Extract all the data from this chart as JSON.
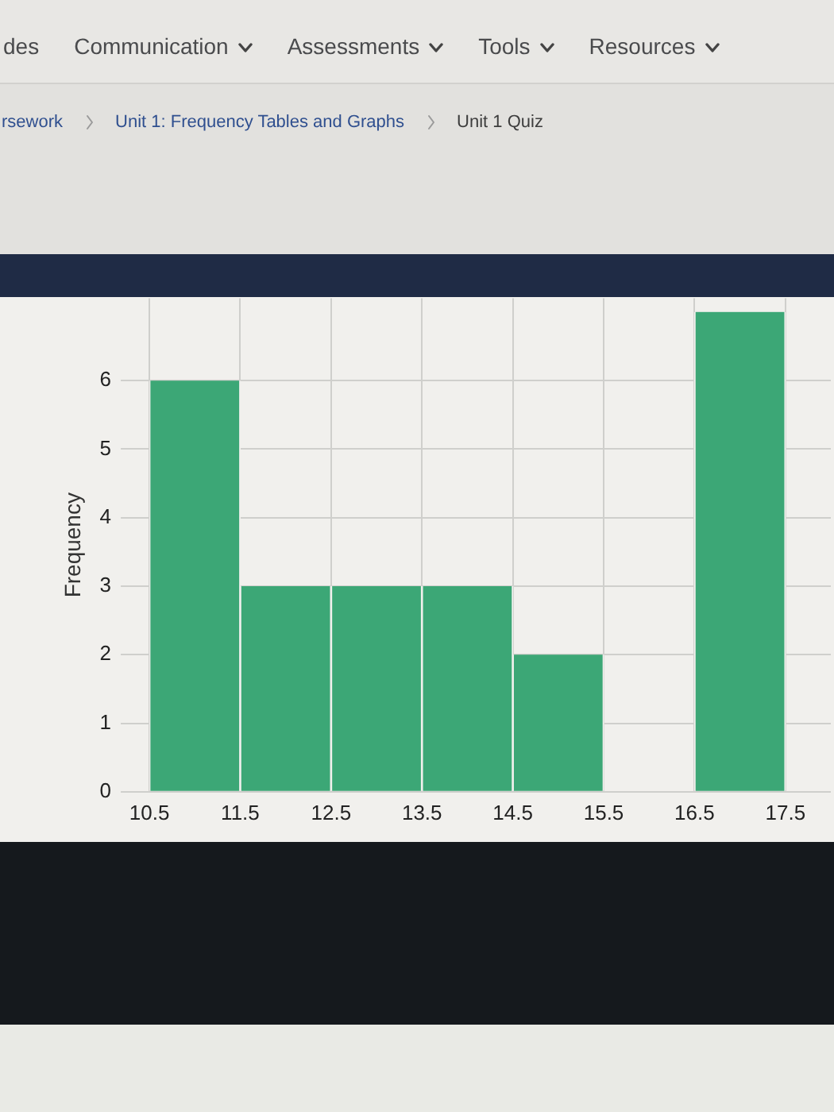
{
  "chart_data": {
    "type": "histogram",
    "ylabel": "Frequency",
    "annotations": [
      "des",
      "Communication",
      "Assessments",
      "Tools",
      "Resources",
      "rsework",
      "Unit 1: Frequency Tables and Graphs",
      "Unit 1 Quiz"
    ],
    "bins": [
      10.5,
      11.5,
      12.5,
      13.5,
      14.5,
      15.5,
      16.5,
      17.5
    ],
    "values": [
      6,
      3,
      3,
      3,
      2,
      0,
      7
    ],
    "color": "#3ca776",
    "xlim": [
      10.5,
      18
    ],
    "xticks": [
      10.5,
      11.5,
      12.5,
      13.5,
      14.5,
      15.5,
      16.5,
      17.5
    ],
    "ylim": [
      0,
      7.2
    ],
    "yticks": [
      0,
      1,
      2,
      3,
      4,
      5,
      6
    ],
    "grid": true
  }
}
